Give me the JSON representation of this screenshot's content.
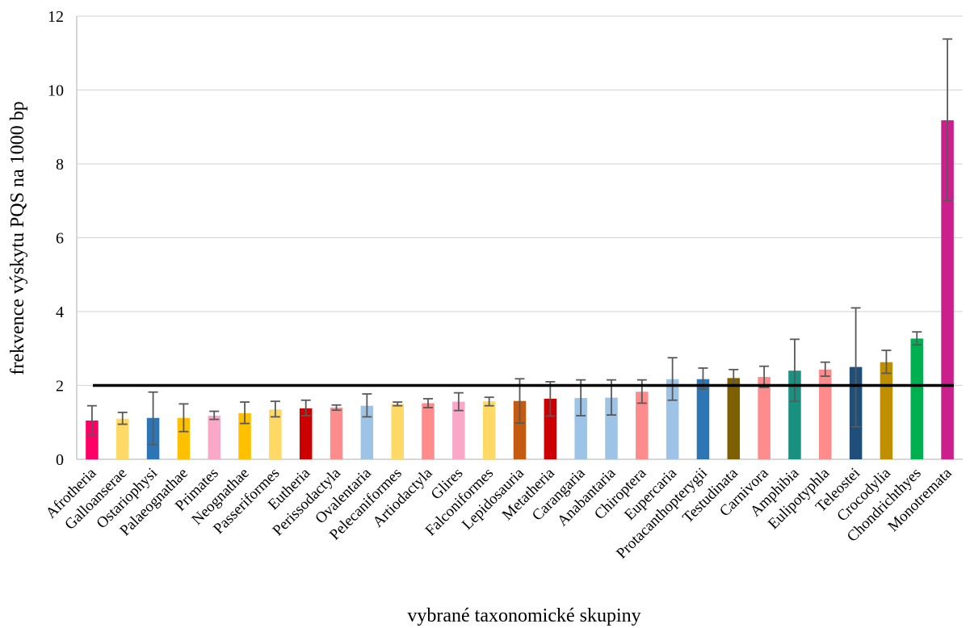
{
  "chart_data": {
    "type": "bar",
    "xlabel": "vybrané taxonomické skupiny",
    "ylabel": "frekvence výskytu PQS na 1000 bp",
    "ylim": [
      0,
      12
    ],
    "yticks": [
      0,
      2,
      4,
      6,
      8,
      10,
      12
    ],
    "grid": true,
    "reference_line": 2,
    "categories": [
      "Afrotheria",
      "Galloanserae",
      "Ostariophysi",
      "Palaeognathae",
      "Primates",
      "Neognathae",
      "Passeriformes",
      "Eutheria",
      "Perissodactyla",
      "Ovalentaria",
      "Pelecaniformes",
      "Artiodactyla",
      "Glires",
      "Falconiformes",
      "Lepidosauria",
      "Metatheria",
      "Carangaria",
      "Anabantaria",
      "Chiroptera",
      "Eupercaria",
      "Protacanthopterygii",
      "Testudinata",
      "Carnivora",
      "Amphibia",
      "Eulipotyphla",
      "Teleostei",
      "Crocodylia",
      "Chondrichthyes",
      "Monotremata"
    ],
    "values": [
      1.05,
      1.1,
      1.12,
      1.12,
      1.18,
      1.25,
      1.35,
      1.38,
      1.4,
      1.45,
      1.5,
      1.52,
      1.56,
      1.57,
      1.58,
      1.64,
      1.66,
      1.67,
      1.83,
      2.17,
      2.17,
      2.2,
      2.23,
      2.4,
      2.43,
      2.5,
      2.63,
      3.27,
      9.18
    ],
    "error_low": [
      0.65,
      0.95,
      0.4,
      0.75,
      1.08,
      0.97,
      1.15,
      1.18,
      1.33,
      1.15,
      1.45,
      1.4,
      1.32,
      1.45,
      0.98,
      1.17,
      1.18,
      1.2,
      1.52,
      1.6,
      1.9,
      1.98,
      1.95,
      1.57,
      2.25,
      0.88,
      2.33,
      3.1,
      7.0
    ],
    "error_high": [
      1.45,
      1.27,
      1.82,
      1.5,
      1.3,
      1.55,
      1.57,
      1.6,
      1.47,
      1.77,
      1.55,
      1.64,
      1.8,
      1.68,
      2.18,
      2.1,
      2.15,
      2.15,
      2.15,
      2.75,
      2.47,
      2.43,
      2.52,
      3.25,
      2.63,
      4.1,
      2.95,
      3.45,
      11.38
    ],
    "colors": [
      "#FF0066",
      "#FFD966",
      "#2E75B6",
      "#FFC000",
      "#F9A8C8",
      "#FFC000",
      "#FFD966",
      "#CC0000",
      "#FF8C8C",
      "#9DC3E6",
      "#FFD966",
      "#FF8C8C",
      "#F9A8C8",
      "#FFD966",
      "#C55A11",
      "#CC0000",
      "#9DC3E6",
      "#9DC3E6",
      "#FF8C8C",
      "#9DC3E6",
      "#2E75B6",
      "#7F6000",
      "#FF8C8C",
      "#1A9080",
      "#FF8C8C",
      "#1F4E79",
      "#BF8F00",
      "#00B050",
      "#CC1F8E"
    ]
  }
}
